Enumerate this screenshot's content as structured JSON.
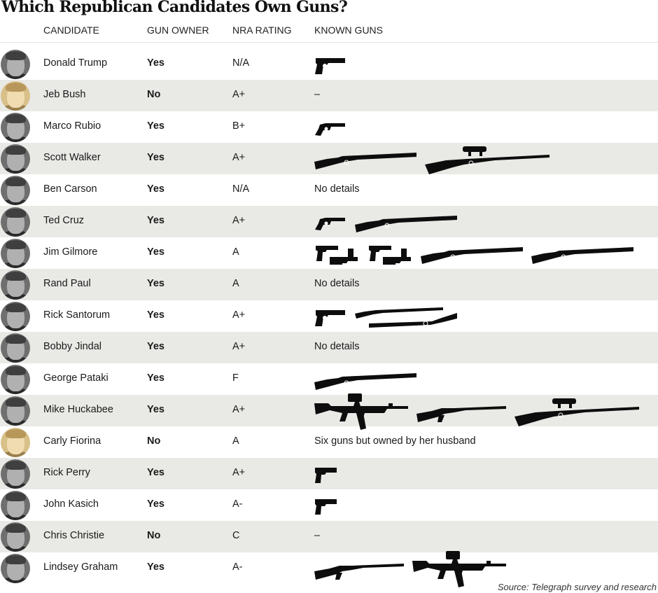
{
  "title": "Which Republican Candidates Own Guns?",
  "columns": {
    "candidate": "CANDIDATE",
    "gun_owner": "GUN OWNER",
    "nra_rating": "NRA RATING",
    "known_guns": "KNOWN GUNS"
  },
  "rows": [
    {
      "name": "Donald Trump",
      "owner": "Yes",
      "nra": "N/A",
      "guns_text": "",
      "guns": [
        "pistol"
      ]
    },
    {
      "name": "Jeb Bush",
      "owner": "No",
      "nra": "A+",
      "guns_text": "–",
      "guns": []
    },
    {
      "name": "Marco Rubio",
      "owner": "Yes",
      "nra": "B+",
      "guns_text": "",
      "guns": [
        "revolver"
      ]
    },
    {
      "name": "Scott Walker",
      "owner": "Yes",
      "nra": "A+",
      "guns_text": "",
      "guns": [
        "shotgun",
        "scoped-rifle"
      ]
    },
    {
      "name": "Ben Carson",
      "owner": "Yes",
      "nra": "N/A",
      "guns_text": "No details",
      "guns": []
    },
    {
      "name": "Ted Cruz",
      "owner": "Yes",
      "nra": "A+",
      "guns_text": "",
      "guns": [
        "revolver",
        "shotgun"
      ]
    },
    {
      "name": "Jim Gilmore",
      "owner": "Yes",
      "nra": "A",
      "guns_text": "",
      "guns": [
        "pistol-pair",
        "pistol-pair",
        "shotgun",
        "shotgun"
      ]
    },
    {
      "name": "Rand Paul",
      "owner": "Yes",
      "nra": "A",
      "guns_text": "No details",
      "guns": []
    },
    {
      "name": "Rick Santorum",
      "owner": "Yes",
      "nra": "A+",
      "guns_text": "",
      "guns": [
        "pistol",
        "shotgun-pair"
      ]
    },
    {
      "name": "Bobby Jindal",
      "owner": "Yes",
      "nra": "A+",
      "guns_text": "No details",
      "guns": []
    },
    {
      "name": "George Pataki",
      "owner": "Yes",
      "nra": "F",
      "guns_text": "",
      "guns": [
        "shotgun"
      ]
    },
    {
      "name": "Mike Huckabee",
      "owner": "Yes",
      "nra": "A+",
      "guns_text": "",
      "guns": [
        "assault-rifle",
        "pump-shotgun",
        "scoped-rifle"
      ]
    },
    {
      "name": "Carly Fiorina",
      "owner": "No",
      "nra": "A",
      "guns_text": "Six guns but owned by her husband",
      "guns": []
    },
    {
      "name": "Rick Perry",
      "owner": "Yes",
      "nra": "A+",
      "guns_text": "",
      "guns": [
        "compact-pistol"
      ]
    },
    {
      "name": "John Kasich",
      "owner": "Yes",
      "nra": "A-",
      "guns_text": "",
      "guns": [
        "compact-pistol"
      ]
    },
    {
      "name": "Chris Christie",
      "owner": "No",
      "nra": "C",
      "guns_text": "–",
      "guns": []
    },
    {
      "name": "Lindsey Graham",
      "owner": "Yes",
      "nra": "A-",
      "guns_text": "",
      "guns": [
        "pump-shotgun",
        "assault-rifle"
      ]
    }
  ],
  "source": "Source: Telegraph survey and research"
}
